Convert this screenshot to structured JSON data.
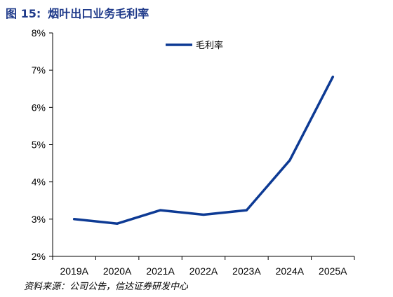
{
  "figure": {
    "label": "图 15:",
    "title": "烟叶出口业务毛利率"
  },
  "source_note": "资料来源：公司公告，信达证券研发中心",
  "colors": {
    "line": "#0d3a94",
    "title": "#1f3a8a",
    "axis": "#000000"
  },
  "chart_data": {
    "type": "line",
    "categories": [
      "2019A",
      "2020A",
      "2021A",
      "2022A",
      "2023A",
      "2024A",
      "2025A"
    ],
    "series": [
      {
        "name": "毛利率",
        "values": [
          3.0,
          2.88,
          3.24,
          3.12,
          3.24,
          4.58,
          6.82
        ]
      }
    ],
    "ylim": [
      2,
      8
    ],
    "yticks": [
      "2%",
      "3%",
      "4%",
      "5%",
      "6%",
      "7%",
      "8%"
    ],
    "grid": false,
    "legend": "top-center"
  }
}
